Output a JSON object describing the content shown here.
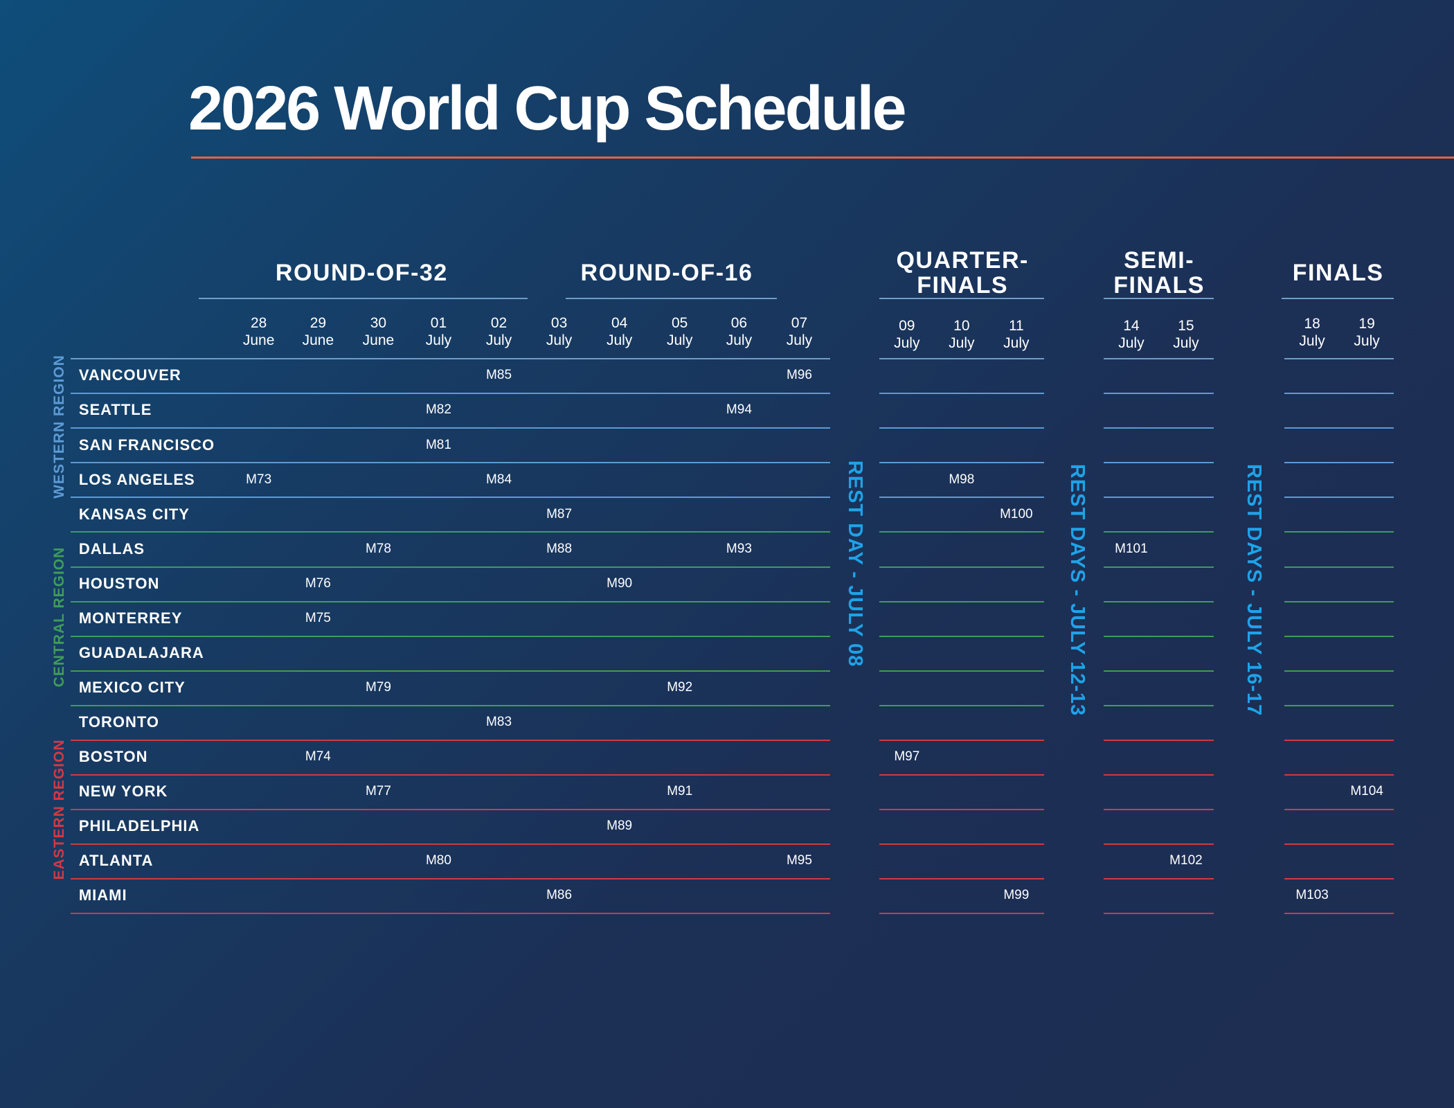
{
  "title": "2026 World Cup Schedule",
  "colors": {
    "accent": "#e5633f",
    "rest": "#1ea3e8",
    "western": "#5d9bd5",
    "central": "#3f9c5a",
    "eastern": "#d03a42"
  },
  "stages": [
    {
      "label": "ROUND-OF-32"
    },
    {
      "label": "ROUND-OF-16"
    },
    {
      "label": "QUARTER-\nFINALS"
    },
    {
      "label": "SEMI-\nFINALS"
    },
    {
      "label": "FINALS"
    }
  ],
  "dates": [
    {
      "day": "28",
      "month": "June"
    },
    {
      "day": "29",
      "month": "June"
    },
    {
      "day": "30",
      "month": "June"
    },
    {
      "day": "01",
      "month": "July"
    },
    {
      "day": "02",
      "month": "July"
    },
    {
      "day": "03",
      "month": "July"
    },
    {
      "day": "04",
      "month": "July"
    },
    {
      "day": "05",
      "month": "July"
    },
    {
      "day": "06",
      "month": "July"
    },
    {
      "day": "07",
      "month": "July"
    },
    {
      "day": "09",
      "month": "July"
    },
    {
      "day": "10",
      "month": "July"
    },
    {
      "day": "11",
      "month": "July"
    },
    {
      "day": "14",
      "month": "July"
    },
    {
      "day": "15",
      "month": "July"
    },
    {
      "day": "18",
      "month": "July"
    },
    {
      "day": "19",
      "month": "July"
    }
  ],
  "regions": [
    {
      "label": "WESTERN REGION",
      "color": "#5d9bd5"
    },
    {
      "label": "CENTRAL REGION",
      "color": "#3f9c5a"
    },
    {
      "label": "EASTERN REGION",
      "color": "#d03a42"
    }
  ],
  "rest_days": [
    {
      "label": "REST DAY - JULY 08"
    },
    {
      "label": "REST DAYS - JULY 12-13"
    },
    {
      "label": "REST DAYS - JULY 16-17"
    }
  ],
  "cities": [
    {
      "name": "VANCOUVER",
      "region": "western",
      "matches": [
        [
          "02 July",
          "M85"
        ],
        [
          "07 July",
          "M96"
        ]
      ]
    },
    {
      "name": "SEATTLE",
      "region": "western",
      "matches": [
        [
          "01 July",
          "M82"
        ],
        [
          "06 July",
          "M94"
        ]
      ]
    },
    {
      "name": "SAN FRANCISCO",
      "region": "western",
      "matches": [
        [
          "01 July",
          "M81"
        ]
      ]
    },
    {
      "name": "LOS ANGELES",
      "region": "western",
      "matches": [
        [
          "28 June",
          "M73"
        ],
        [
          "02 July",
          "M84"
        ],
        [
          "10 July",
          "M98"
        ]
      ]
    },
    {
      "name": "KANSAS CITY",
      "region": "central",
      "matches": [
        [
          "03 July",
          "M87"
        ],
        [
          "11 July",
          "M100"
        ]
      ]
    },
    {
      "name": "DALLAS",
      "region": "central",
      "matches": [
        [
          "30 June",
          "M78"
        ],
        [
          "03 July",
          "M88"
        ],
        [
          "06 July",
          "M93"
        ],
        [
          "14 July",
          "M101"
        ]
      ]
    },
    {
      "name": "HOUSTON",
      "region": "central",
      "matches": [
        [
          "29 June",
          "M76"
        ],
        [
          "04 July",
          "M90"
        ]
      ]
    },
    {
      "name": "MONTERREY",
      "region": "central",
      "matches": [
        [
          "29 June",
          "M75"
        ]
      ]
    },
    {
      "name": "GUADALAJARA",
      "region": "central",
      "matches": []
    },
    {
      "name": "MEXICO CITY",
      "region": "central",
      "matches": [
        [
          "30 June",
          "M79"
        ],
        [
          "05 July",
          "M92"
        ]
      ]
    },
    {
      "name": "TORONTO",
      "region": "eastern",
      "matches": [
        [
          "02 July",
          "M83"
        ]
      ]
    },
    {
      "name": "BOSTON",
      "region": "eastern",
      "matches": [
        [
          "29 June",
          "M74"
        ],
        [
          "09 July",
          "M97"
        ]
      ]
    },
    {
      "name": "NEW YORK",
      "region": "eastern",
      "matches": [
        [
          "30 June",
          "M77"
        ],
        [
          "05 July",
          "M91"
        ],
        [
          "19 July",
          "M104"
        ]
      ]
    },
    {
      "name": "PHILADELPHIA",
      "region": "eastern",
      "matches": [
        [
          "04 July",
          "M89"
        ]
      ]
    },
    {
      "name": "ATLANTA",
      "region": "eastern",
      "matches": [
        [
          "01 July",
          "M80"
        ],
        [
          "07 July",
          "M95"
        ],
        [
          "15 July",
          "M102"
        ]
      ]
    },
    {
      "name": "MIAMI",
      "region": "eastern",
      "matches": [
        [
          "03 July",
          "M86"
        ],
        [
          "11 July",
          "M99"
        ],
        [
          "18 July",
          "M103"
        ]
      ]
    }
  ]
}
